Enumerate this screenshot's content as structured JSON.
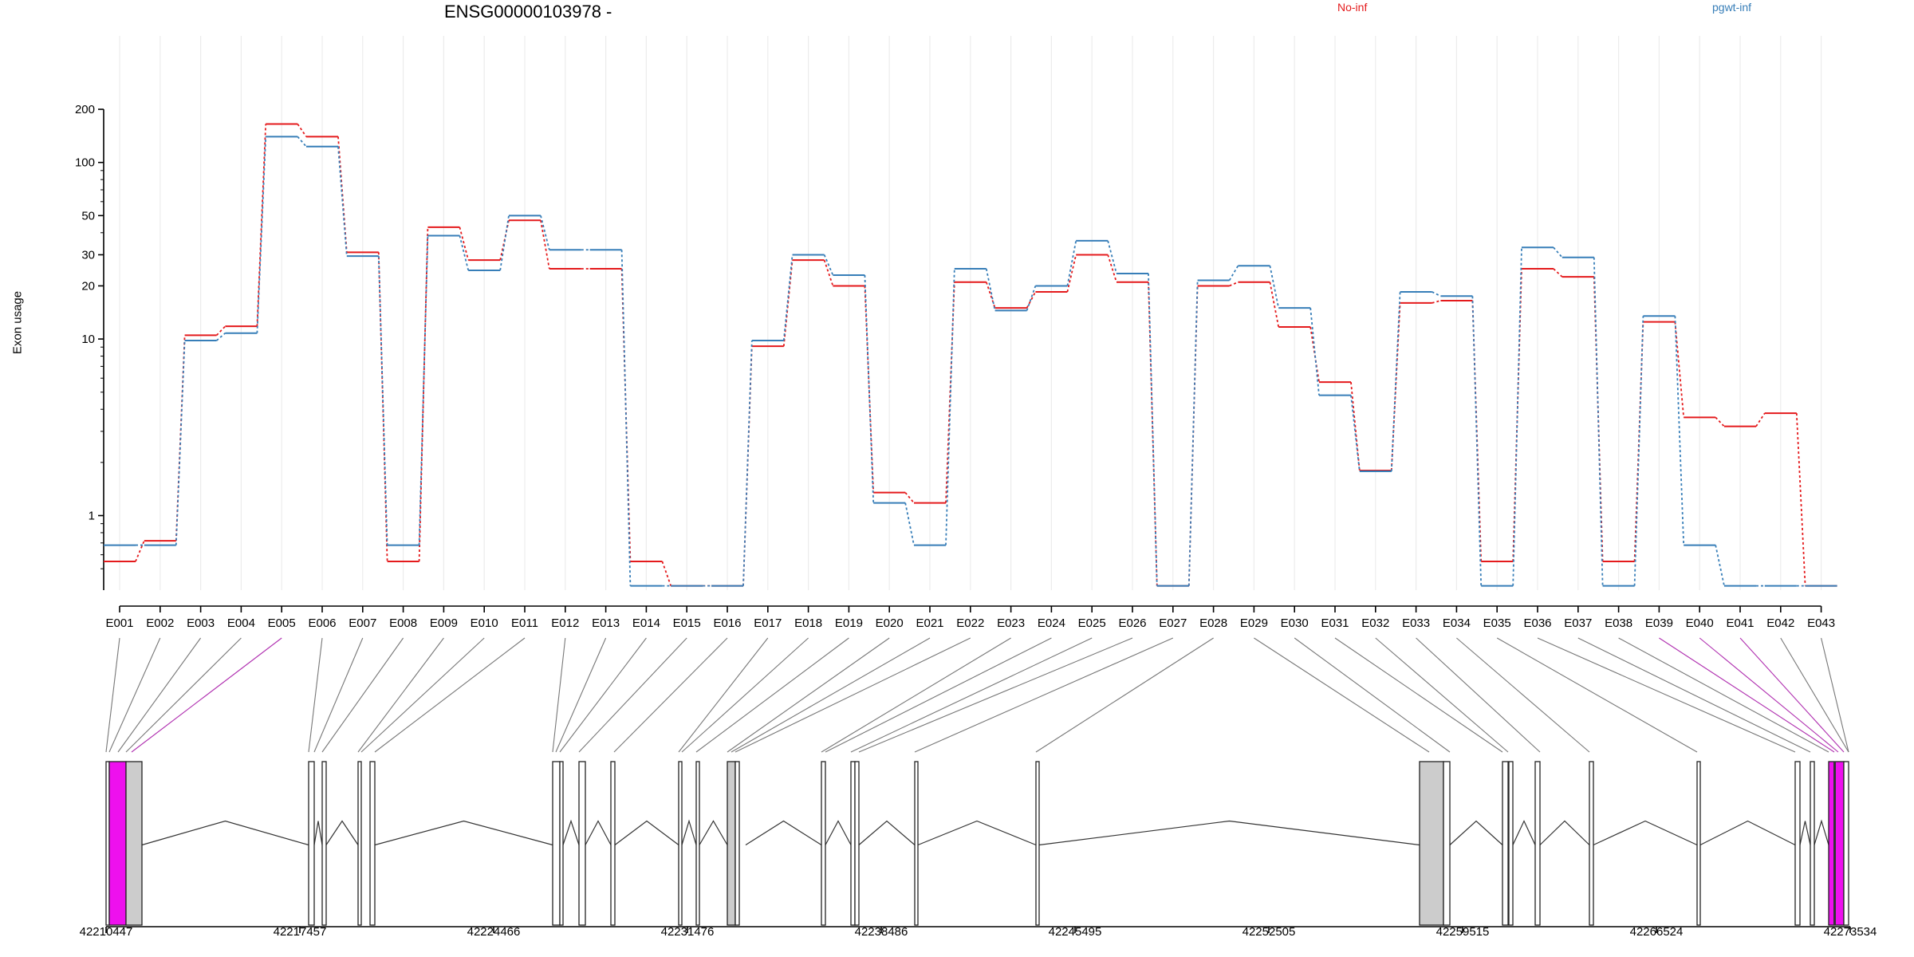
{
  "chart_data": {
    "type": "line",
    "title": "ENSG00000103978 -",
    "ylabel": "Exon usage",
    "yscale": "log",
    "ylim": [
      0.4,
      200
    ],
    "yticks": [
      1,
      10,
      20,
      30,
      50,
      100,
      200
    ],
    "legend": "top-right",
    "categories": [
      "E001",
      "E002",
      "E003",
      "E004",
      "E005",
      "E006",
      "E007",
      "E008",
      "E009",
      "E010",
      "E011",
      "E012",
      "E013",
      "E014",
      "E015",
      "E016",
      "E017",
      "E018",
      "E019",
      "E020",
      "E021",
      "E022",
      "E023",
      "E024",
      "E025",
      "E026",
      "E027",
      "E028",
      "E029",
      "E030",
      "E031",
      "E032",
      "E033",
      "E034",
      "E035",
      "E036",
      "E037",
      "E038",
      "E039",
      "E040",
      "E041",
      "E042",
      "E043"
    ],
    "series": [
      {
        "name": "No-inf",
        "color": "#e41a1c",
        "values": [
          0.55,
          0.72,
          10.5,
          11.8,
          165,
          140,
          31,
          0.55,
          43,
          28,
          47,
          25,
          25,
          0.55,
          0.4,
          0.4,
          9.1,
          28,
          20,
          1.35,
          1.18,
          21,
          15,
          18.5,
          30,
          21,
          0.4,
          20,
          21,
          11.7,
          5.7,
          1.8,
          16,
          16.5,
          0.55,
          25,
          22.5,
          0.55,
          12.5,
          3.6,
          3.2,
          3.8,
          0.4
        ]
      },
      {
        "name": "pgwt-inf",
        "color": "#377eb8",
        "values": [
          0.68,
          0.68,
          9.8,
          10.8,
          140,
          123,
          29.5,
          0.68,
          38.5,
          24.5,
          50,
          32,
          32,
          0.4,
          0.4,
          0.4,
          9.8,
          30,
          23,
          1.18,
          0.68,
          25,
          14.5,
          20,
          36,
          23.5,
          0.4,
          21.5,
          26,
          15,
          4.8,
          1.78,
          18.5,
          17.5,
          0.4,
          33,
          29,
          0.4,
          13.5,
          0.68,
          0.4,
          0.4,
          0.4
        ]
      }
    ],
    "genomic_axis": {
      "ticks": [
        "42210447",
        "42217457",
        "42224466",
        "42231476",
        "42238486",
        "42245495",
        "42252505",
        "42259515",
        "42266524",
        "42273534"
      ]
    }
  }
}
